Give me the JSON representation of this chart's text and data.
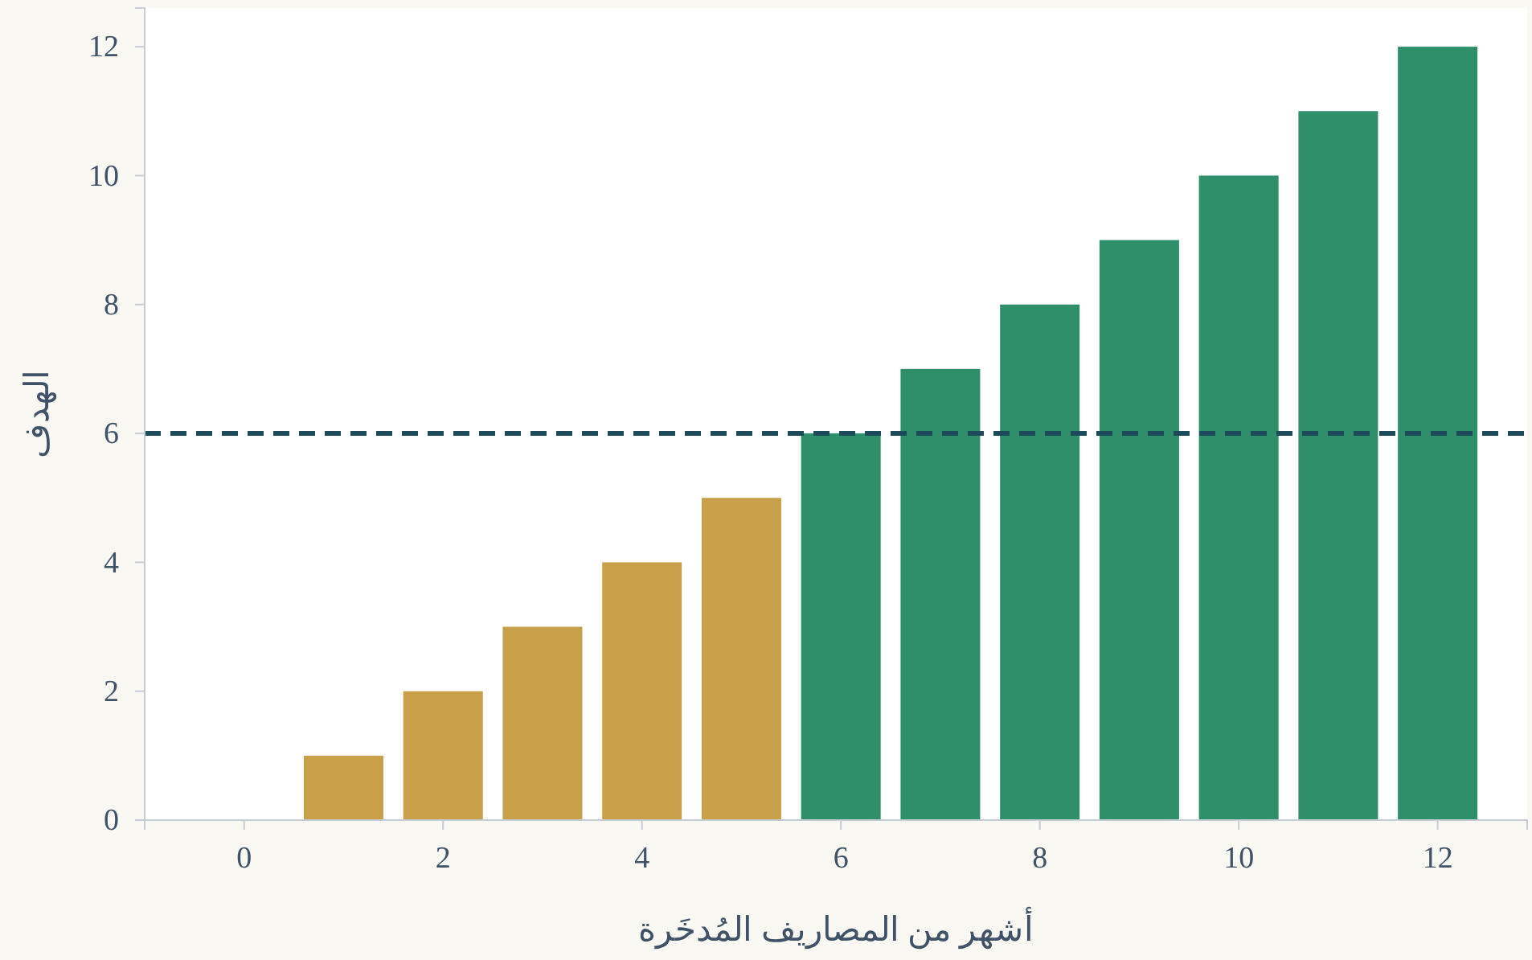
{
  "chart_data": {
    "type": "bar",
    "xlabel": "أشهر من المصاريف المُدخَرة",
    "ylabel": "الهدف",
    "x": [
      0,
      1,
      2,
      3,
      4,
      5,
      6,
      7,
      8,
      9,
      10,
      11,
      12
    ],
    "values": [
      0,
      1,
      2,
      3,
      4,
      5,
      6,
      7,
      8,
      9,
      10,
      11,
      12
    ],
    "colors": [
      "#c9a04a",
      "#c9a04a",
      "#c9a04a",
      "#c9a04a",
      "#c9a04a",
      "#c9a04a",
      "#2e8f6a",
      "#2e8f6a",
      "#2e8f6a",
      "#2e8f6a",
      "#2e8f6a",
      "#2e8f6a",
      "#2e8f6a"
    ],
    "xlim": [
      -1,
      12.9
    ],
    "xticks": [
      0,
      2,
      4,
      6,
      8,
      10,
      12
    ],
    "ylim": [
      0,
      12.6
    ],
    "yticks": [
      0,
      2,
      4,
      6,
      8,
      10,
      12
    ],
    "ref_lines": [
      {
        "axis": "y",
        "value": 6,
        "color": "#1c4a5a",
        "line_style": "dashed"
      }
    ],
    "grid": false
  }
}
